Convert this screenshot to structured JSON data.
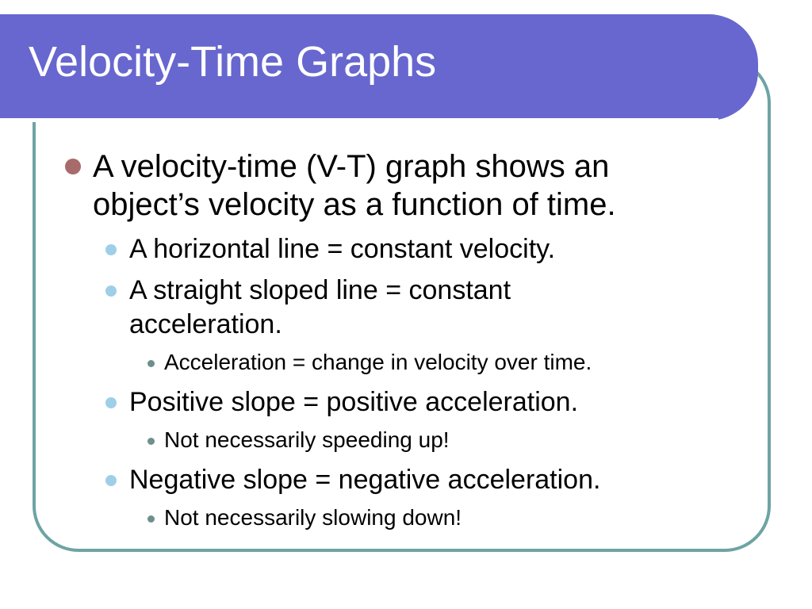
{
  "slide": {
    "title": "Velocity-Time Graphs",
    "colors": {
      "title_bar": "#6767cf",
      "frame_border": "#6fa3a3",
      "bullet_level1": "#a86b6b",
      "bullet_level2": "#9fcfe8",
      "bullet_level3": "#6e8f8f"
    },
    "bullets": [
      {
        "level": 1,
        "lines": [
          "A velocity-time (V-T) graph shows an",
          "object’s velocity as a function of time."
        ]
      },
      {
        "level": 2,
        "lines": [
          "A horizontal line = constant velocity."
        ]
      },
      {
        "level": 2,
        "lines": [
          "A straight sloped line = constant",
          "acceleration."
        ]
      },
      {
        "level": 3,
        "lines": [
          "Acceleration = change in velocity over time."
        ]
      },
      {
        "level": 2,
        "lines": [
          "Positive slope = positive acceleration."
        ]
      },
      {
        "level": 3,
        "lines": [
          "Not necessarily speeding up!"
        ]
      },
      {
        "level": 2,
        "lines": [
          "Negative slope = negative acceleration."
        ]
      },
      {
        "level": 3,
        "lines": [
          "Not necessarily slowing down!"
        ]
      }
    ]
  }
}
